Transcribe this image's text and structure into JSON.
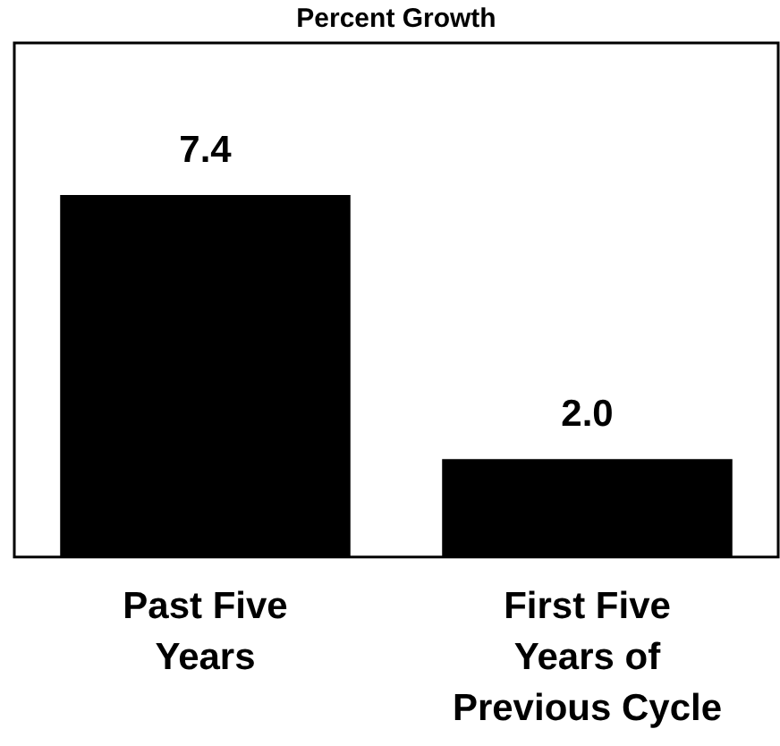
{
  "chart_data": {
    "type": "bar",
    "title": "Percent Growth",
    "categories": [
      "Past Five Years",
      "First Five Years of Previous Cycle"
    ],
    "values": [
      7.4,
      2.0
    ],
    "value_labels": [
      "7.4",
      "2.0"
    ],
    "color": "#000000"
  }
}
